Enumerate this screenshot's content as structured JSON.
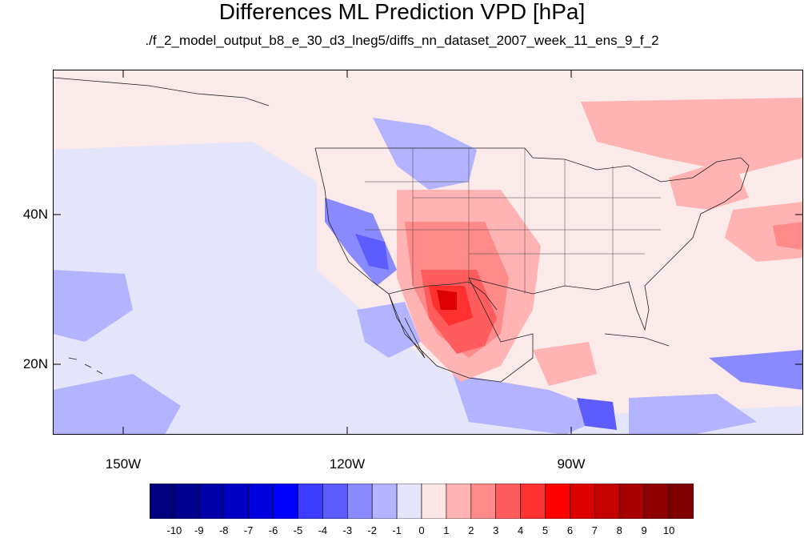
{
  "title": "Differences ML Prediction VPD [hPa]",
  "subtitle": "./f_2_model_output_b8_e_30_d3_lneg5/diffs_nn_dataset_2007_week_11_ens_9_f_2",
  "map": {
    "lat_labels": [
      "40N",
      "20N"
    ],
    "lon_labels": [
      "150W",
      "120W",
      "90W"
    ]
  },
  "colorbar": {
    "labels": [
      "-10",
      "-9",
      "-8",
      "-7",
      "-6",
      "-5",
      "-4",
      "-3",
      "-2",
      "-1",
      "0",
      "1",
      "2",
      "3",
      "4",
      "5",
      "6",
      "7",
      "8",
      "9",
      "10"
    ],
    "colors": [
      "#00007f",
      "#00008f",
      "#0000a8",
      "#0000c4",
      "#0000de",
      "#0000ff",
      "#3c3cff",
      "#5d5dff",
      "#8a8aff",
      "#b3b3ff",
      "#e4e4fa",
      "#ffe6e6",
      "#ffb3b3",
      "#ff8a8a",
      "#ff5d5d",
      "#ff3030",
      "#ff0000",
      "#de0000",
      "#c40000",
      "#a80000",
      "#8f0000",
      "#7f0000"
    ]
  }
}
